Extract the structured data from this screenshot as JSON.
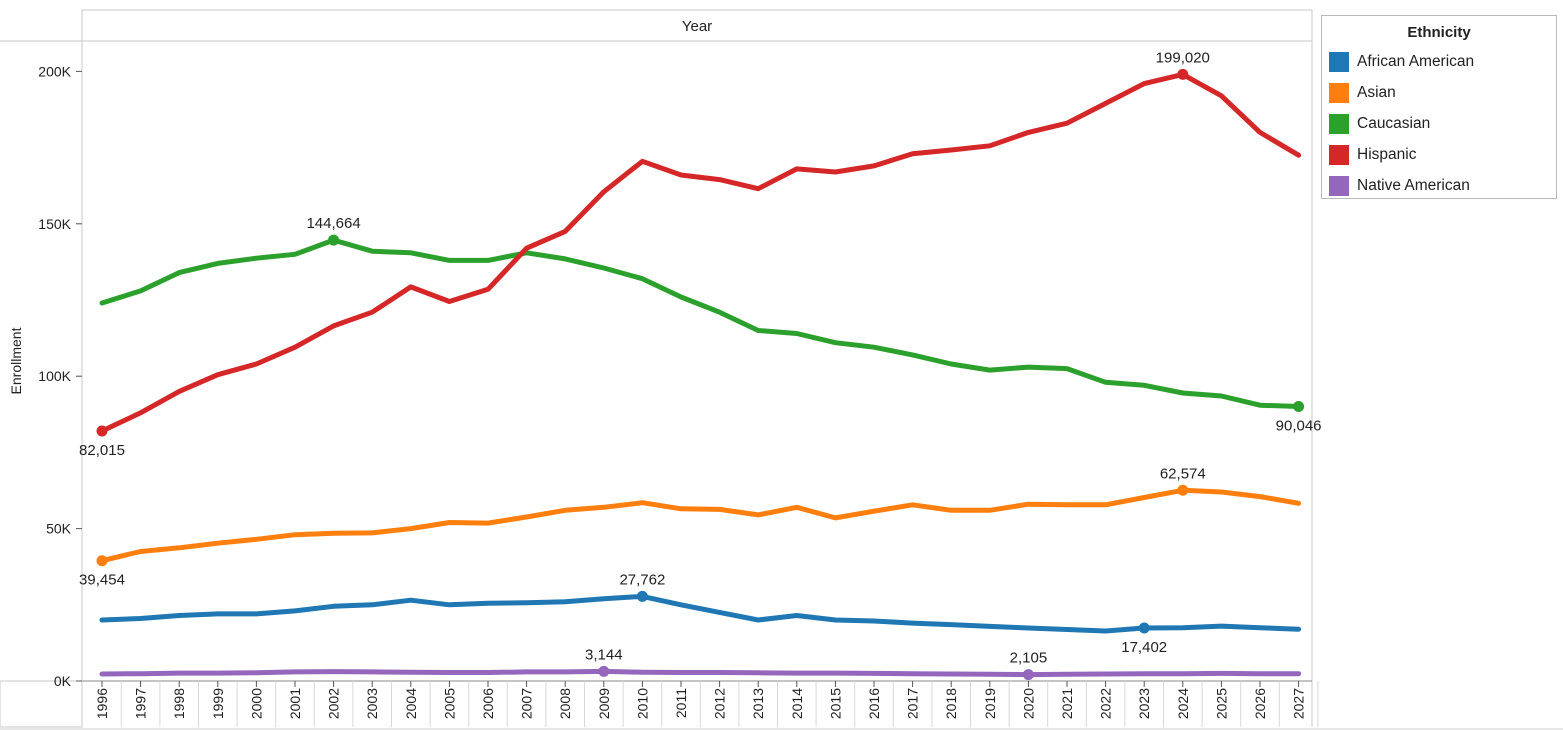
{
  "chart_data": {
    "type": "line",
    "title": "",
    "column_header": "Year",
    "ylabel": "Enrollment",
    "xlabel": "",
    "ylim": [
      0,
      200000
    ],
    "y_ticks": [
      {
        "value": 0,
        "label": "0K"
      },
      {
        "value": 50000,
        "label": "50K"
      },
      {
        "value": 100000,
        "label": "100K"
      },
      {
        "value": 150000,
        "label": "150K"
      },
      {
        "value": 200000,
        "label": "200K"
      }
    ],
    "x": [
      "1996",
      "1997",
      "1998",
      "1999",
      "2000",
      "2001",
      "2002",
      "2003",
      "2004",
      "2005",
      "2006",
      "2007",
      "2008",
      "2009",
      "2010",
      "2011",
      "2012",
      "2013",
      "2014",
      "2015",
      "2016",
      "2017",
      "2018",
      "2019",
      "2020",
      "2021",
      "2022",
      "2023",
      "2024",
      "2025",
      "2026",
      "2027"
    ],
    "legend_title": "Ethnicity",
    "legend_position": "top-right",
    "series": [
      {
        "name": "African American",
        "color": "#1f77b4",
        "values": [
          20000,
          20500,
          21500,
          22000,
          22000,
          23000,
          24500,
          25000,
          26500,
          25000,
          25500,
          25700,
          26000,
          27000,
          27762,
          25000,
          22500,
          20000,
          21500,
          20000,
          19700,
          19000,
          18500,
          17900,
          17400,
          16900,
          16400,
          17402,
          17500,
          18000,
          17500,
          17000
        ],
        "labels": [
          {
            "index": 14,
            "text": "27,762",
            "pos": "above"
          },
          {
            "index": 27,
            "text": "17,402",
            "pos": "below"
          }
        ]
      },
      {
        "name": "Asian",
        "color": "#ff7f0e",
        "values": [
          39454,
          42500,
          43700,
          45200,
          46500,
          48000,
          48500,
          48600,
          50000,
          52000,
          51800,
          53800,
          56000,
          57000,
          58500,
          56500,
          56300,
          54500,
          57000,
          53500,
          55700,
          57800,
          56000,
          56000,
          58000,
          57800,
          57800,
          60200,
          62574,
          62000,
          60500,
          58300
        ],
        "labels": [
          {
            "index": 0,
            "text": "39,454",
            "pos": "below"
          },
          {
            "index": 28,
            "text": "62,574",
            "pos": "above"
          }
        ]
      },
      {
        "name": "Caucasian",
        "color": "#2ca02c",
        "values": [
          124000,
          128000,
          134000,
          137000,
          138700,
          140000,
          144664,
          141000,
          140500,
          138000,
          138000,
          140500,
          138500,
          135500,
          132000,
          126000,
          121000,
          115000,
          114000,
          111000,
          109500,
          107000,
          104000,
          102000,
          103000,
          102500,
          98000,
          97000,
          94500,
          93500,
          90500,
          90046
        ],
        "labels": [
          {
            "index": 6,
            "text": "144,664",
            "pos": "above"
          },
          {
            "index": 31,
            "text": "90,046",
            "pos": "below"
          }
        ]
      },
      {
        "name": "Hispanic",
        "color": "#d62728",
        "values": [
          82015,
          88000,
          95000,
          100500,
          104000,
          109500,
          116500,
          121000,
          129300,
          124500,
          128500,
          142000,
          147500,
          160500,
          170500,
          166000,
          164500,
          161500,
          168000,
          167000,
          169000,
          173000,
          174200,
          175600,
          180000,
          183000,
          189500,
          196000,
          199020,
          192000,
          180000,
          172500
        ],
        "labels": [
          {
            "index": 0,
            "text": "82,015",
            "pos": "below"
          },
          {
            "index": 28,
            "text": "199,020",
            "pos": "above"
          }
        ]
      },
      {
        "name": "Native American",
        "color": "#9467bd",
        "values": [
          2300,
          2400,
          2600,
          2600,
          2700,
          3000,
          3100,
          3000,
          2900,
          2800,
          2800,
          3000,
          3000,
          3144,
          2900,
          2800,
          2800,
          2700,
          2600,
          2600,
          2500,
          2400,
          2300,
          2200,
          2105,
          2200,
          2300,
          2400,
          2400,
          2500,
          2400,
          2400
        ],
        "labels": [
          {
            "index": 13,
            "text": "3,144",
            "pos": "above"
          },
          {
            "index": 24,
            "text": "2,105",
            "pos": "above"
          }
        ]
      }
    ]
  }
}
